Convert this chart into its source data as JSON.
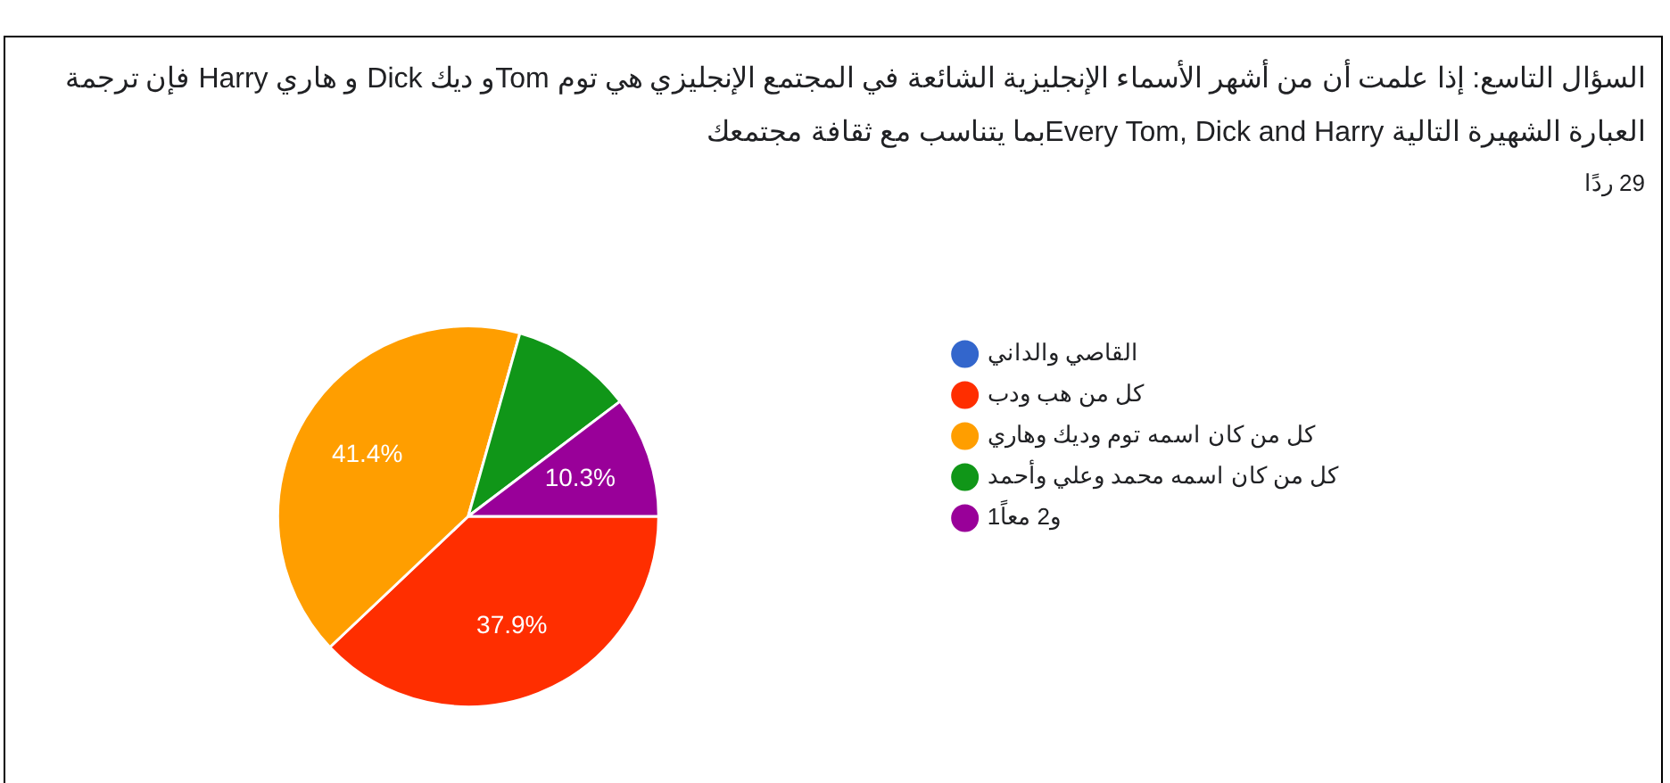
{
  "chart_data": {
    "type": "pie",
    "title": "السؤال التاسع: إذا علمت أن من أشهر الأسماء الإنجليزية الشائعة في المجتمع الإنجليزي هي توم Tomو ديك Dick و هاري Harry فإن ترجمة العبارة الشهيرة التالية Every Tom, Dick and Harryبما يتناسب مع ثقافة مجتمعك",
    "subtitle": "29 ردًا",
    "categories": [
      "القاصي والداني",
      "كل من هب ودب",
      "كل من كان اسمه توم وديك وهاري",
      "كل من كان اسمه محمد وعلي وأحمد",
      "1و2 معاً"
    ],
    "values": [
      0,
      37.9,
      41.4,
      10.3,
      10.3
    ],
    "colors": [
      "#3366cc",
      "#ff2e00",
      "#ff9e00",
      "#109618",
      "#990099"
    ],
    "value_labels": [
      null,
      "37.9%",
      "41.4%",
      null,
      "10.3%"
    ],
    "legend": "right"
  }
}
